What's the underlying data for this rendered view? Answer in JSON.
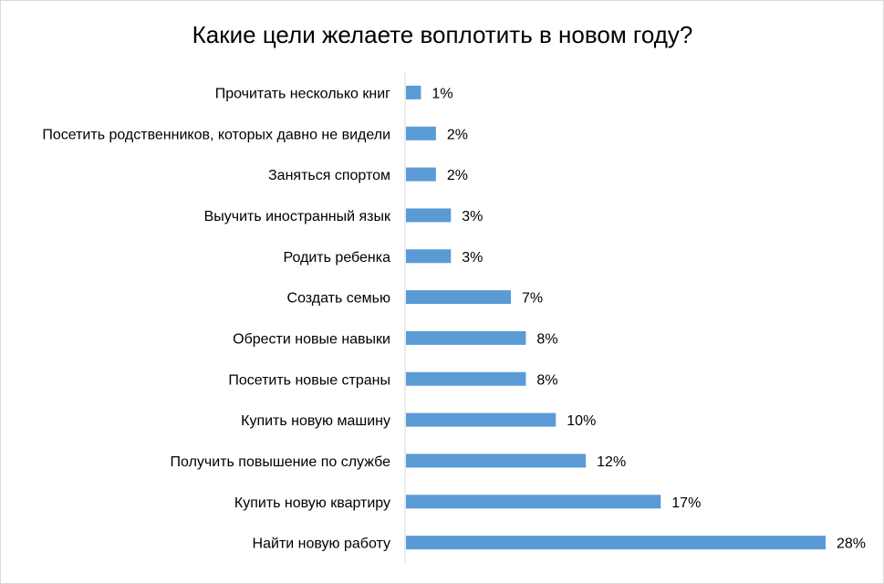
{
  "chart_data": {
    "type": "bar",
    "orientation": "horizontal",
    "title": "Какие цели желаете воплотить в новом году?",
    "categories": [
      "Прочитать несколько книг",
      "Посетить родственников, которых давно не видели",
      "Заняться спортом",
      "Выучить иностранный язык",
      "Родить ребенка",
      "Создать семью",
      "Обрести новые навыки",
      "Посетить новые страны",
      "Купить новую машину",
      "Получить повышение по службе",
      "Купить новую квартиру",
      "Найти новую работу"
    ],
    "values": [
      1,
      2,
      2,
      3,
      3,
      7,
      8,
      8,
      10,
      12,
      17,
      28
    ],
    "value_labels": [
      "1%",
      "2%",
      "2%",
      "3%",
      "3%",
      "7%",
      "8%",
      "8%",
      "10%",
      "12%",
      "17%",
      "28%"
    ],
    "unit": "%",
    "xlabel": "",
    "ylabel": "",
    "xlim": [
      0,
      28
    ],
    "grid": false,
    "legend": "none",
    "bar_color": "#5b9bd5",
    "axis_color": "#d9d9d9"
  }
}
